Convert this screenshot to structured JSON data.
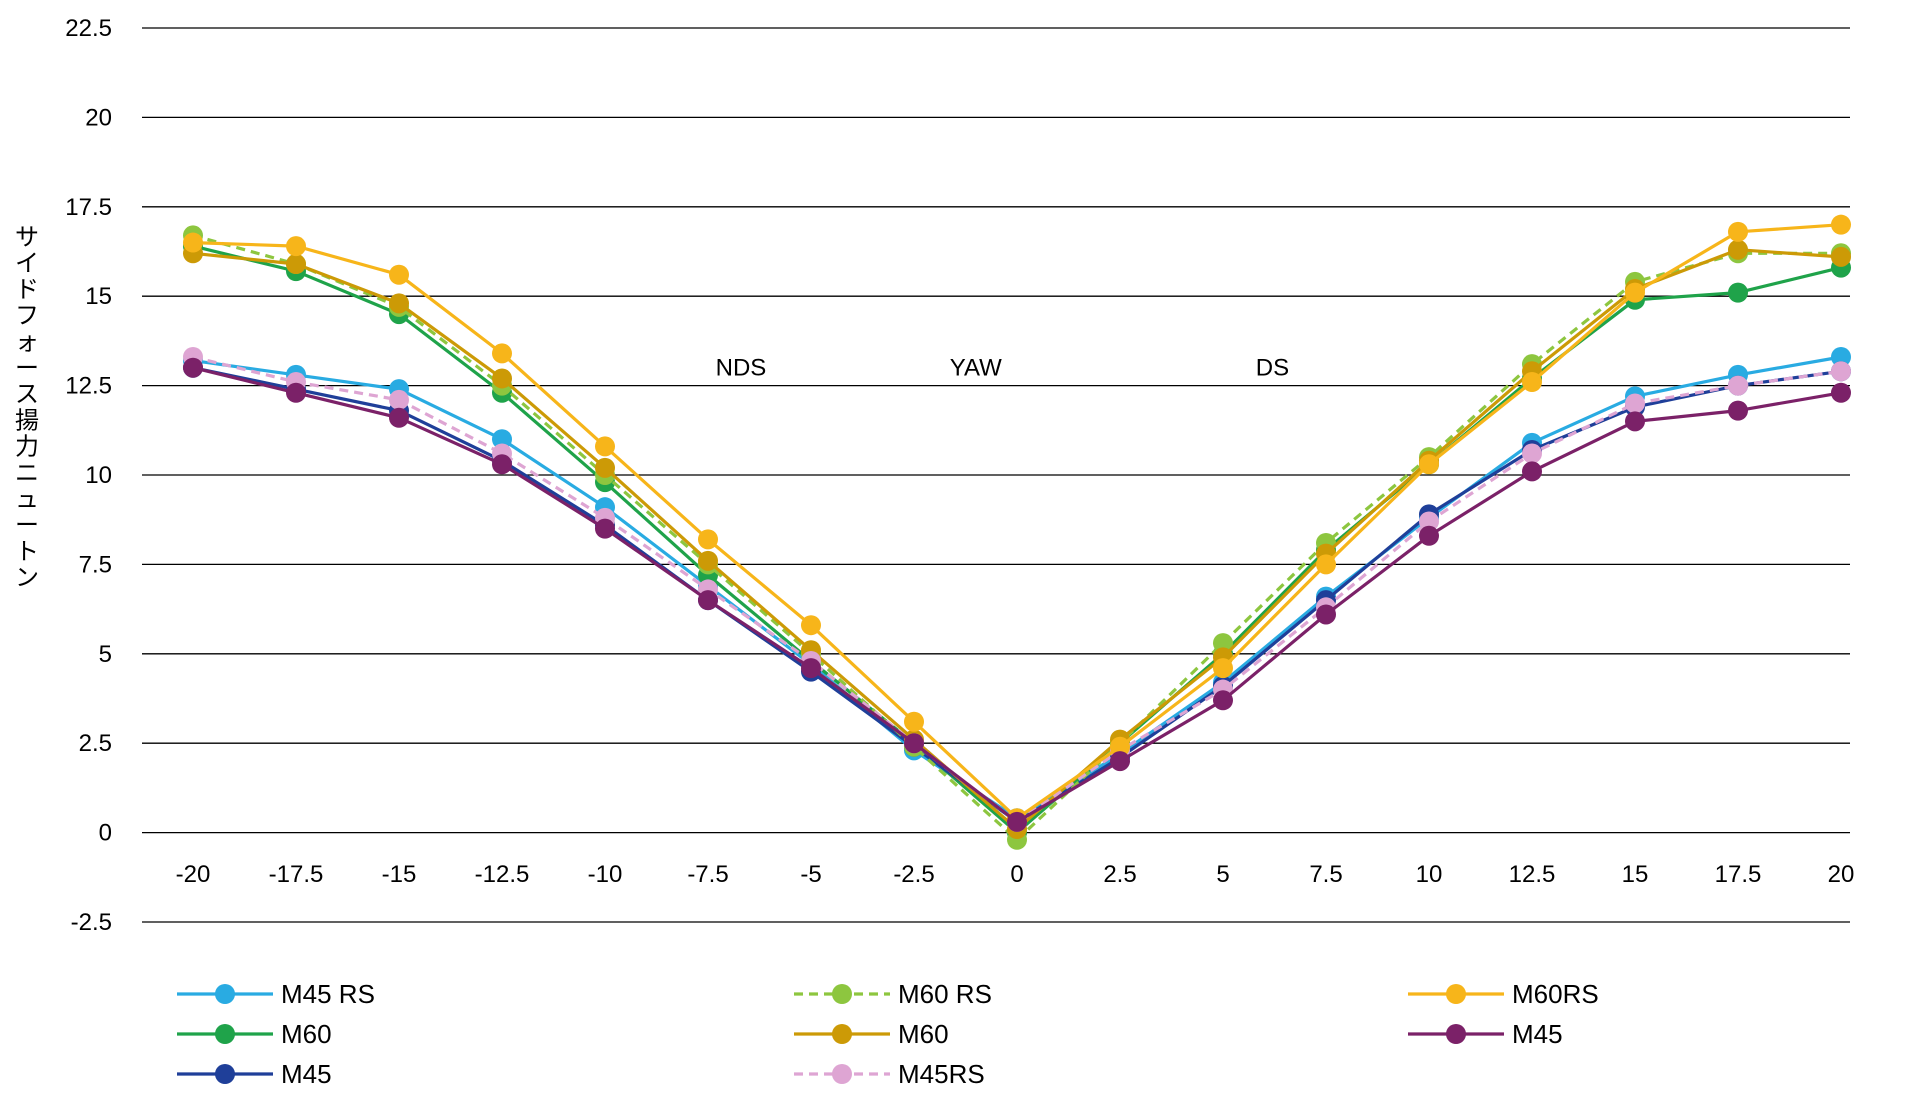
{
  "chart_data": {
    "type": "line",
    "title": "",
    "xlabel": "",
    "ylabel": "サイドフォース揚力ニュートン",
    "x": [
      -20,
      -17.5,
      -15,
      -12.5,
      -10,
      -7.5,
      -5,
      -2.5,
      0,
      2.5,
      5,
      7.5,
      10,
      12.5,
      15,
      17.5,
      20
    ],
    "x_tick_labels": [
      "-20",
      "-17.5",
      "-15",
      "-12.5",
      "-10",
      "-7.5",
      "-5",
      "-2.5",
      "0",
      "2.5",
      "5",
      "7.5",
      "10",
      "12.5",
      "15",
      "17.5",
      "20"
    ],
    "ylim": [
      -2.5,
      22.5
    ],
    "y_ticks": [
      -2.5,
      0,
      2.5,
      5,
      7.5,
      10,
      12.5,
      15,
      17.5,
      20,
      22.5
    ],
    "y_tick_labels": [
      "-2.5",
      "0",
      "2.5",
      "5",
      "7.5",
      "10",
      "12.5",
      "15",
      "17.5",
      "20",
      "22.5"
    ],
    "grid": true,
    "legend_position": "bottom",
    "annotations": [
      {
        "text": "NDS",
        "x": -6.7,
        "y": 13
      },
      {
        "text": "YAW",
        "x": -1.0,
        "y": 13
      },
      {
        "text": "DS",
        "x": 6.2,
        "y": 13
      }
    ],
    "series": [
      {
        "name": "M45 RS",
        "color": "#29abe2",
        "dashed": false,
        "values": [
          13.2,
          12.8,
          12.4,
          11.0,
          9.1,
          6.9,
          4.7,
          2.3,
          0.4,
          2.2,
          4.2,
          6.6,
          8.8,
          10.9,
          12.2,
          12.8,
          13.3
        ]
      },
      {
        "name": "M60",
        "color": "#1fa34a",
        "dashed": false,
        "values": [
          16.4,
          15.7,
          14.5,
          12.3,
          9.8,
          7.2,
          4.8,
          2.5,
          0.0,
          2.5,
          5.0,
          7.9,
          10.3,
          12.7,
          14.9,
          15.1,
          15.8
        ]
      },
      {
        "name": "M45",
        "color": "#1f3f99",
        "dashed": false,
        "values": [
          13.0,
          12.4,
          11.8,
          10.4,
          8.6,
          6.5,
          4.5,
          2.4,
          0.3,
          2.1,
          4.1,
          6.5,
          8.9,
          10.7,
          11.9,
          12.5,
          12.9
        ]
      },
      {
        "name": "M60 RS",
        "color": "#8dc63f",
        "dashed": true,
        "values": [
          16.7,
          15.9,
          14.7,
          12.5,
          10.0,
          7.5,
          5.0,
          2.4,
          -0.2,
          2.5,
          5.3,
          8.1,
          10.5,
          13.1,
          15.4,
          16.2,
          16.2
        ]
      },
      {
        "name": "M60",
        "color": "#cc9a06",
        "dashed": false,
        "values": [
          16.2,
          15.9,
          14.8,
          12.7,
          10.2,
          7.6,
          5.1,
          2.6,
          0.1,
          2.6,
          4.9,
          7.8,
          10.4,
          12.9,
          15.2,
          16.3,
          16.1
        ]
      },
      {
        "name": "M45RS",
        "color": "#dea5d3",
        "dashed": true,
        "values": [
          13.3,
          12.6,
          12.1,
          10.6,
          8.8,
          6.8,
          4.8,
          2.5,
          0.3,
          2.3,
          4.0,
          6.3,
          8.7,
          10.6,
          12.0,
          12.5,
          12.9
        ]
      },
      {
        "name": "M60RS",
        "color": "#f7b51a",
        "dashed": false,
        "values": [
          16.5,
          16.4,
          15.6,
          13.4,
          10.8,
          8.2,
          5.8,
          3.1,
          0.4,
          2.4,
          4.6,
          7.5,
          10.3,
          12.6,
          15.1,
          16.8,
          17.0
        ]
      },
      {
        "name": "M45",
        "color": "#7b2168",
        "dashed": false,
        "values": [
          13.0,
          12.3,
          11.6,
          10.3,
          8.5,
          6.5,
          4.6,
          2.5,
          0.3,
          2.0,
          3.7,
          6.1,
          8.3,
          10.1,
          11.5,
          11.8,
          12.3
        ]
      }
    ]
  }
}
